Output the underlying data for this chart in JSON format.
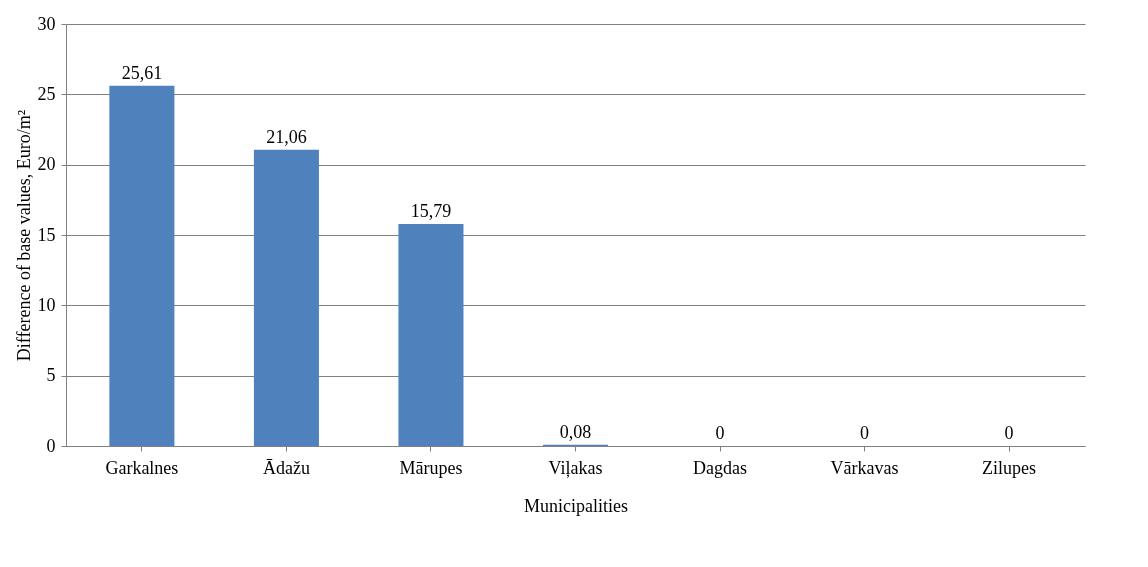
{
  "chart_data": {
    "type": "bar",
    "xlabel": "Municipalities",
    "ylabel": "Difference of base values, Euro/m²",
    "categories": [
      "Garkalnes",
      "Ādažu",
      "Mārupes",
      "Viļakas",
      "Dagdas",
      "Vārkavas",
      "Zilupes"
    ],
    "values": [
      25.61,
      21.06,
      15.79,
      0.08,
      0,
      0,
      0
    ],
    "value_labels": [
      "25,61",
      "21,06",
      "15,79",
      "0,08",
      "0",
      "0",
      "0"
    ],
    "color": "#4f81bd",
    "ylim": [
      0,
      30
    ],
    "yticks": [
      0,
      5,
      10,
      15,
      20,
      25,
      30
    ],
    "grid": "y"
  }
}
